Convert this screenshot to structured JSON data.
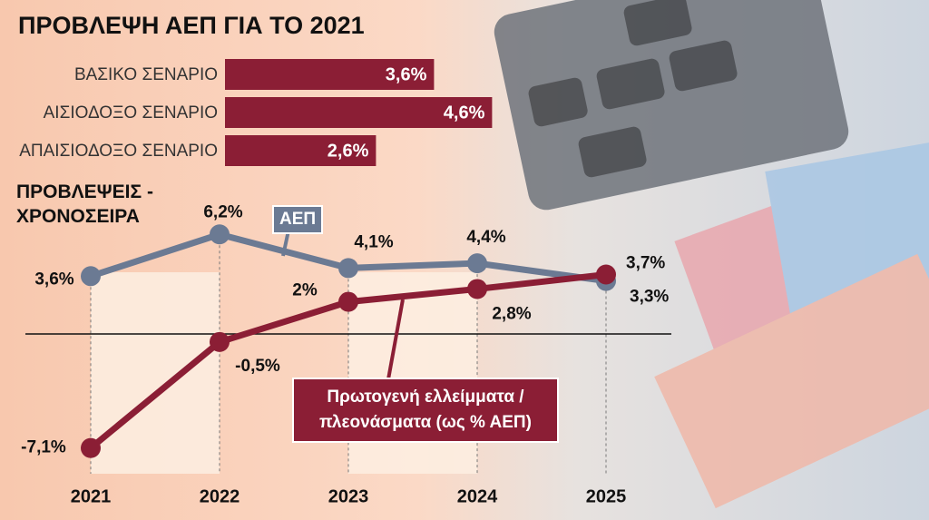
{
  "chart_data": [
    {
      "type": "bar",
      "orientation": "horizontal",
      "title": "ΠΡΟΒΛΕΨΗ ΑΕΠ ΓΙΑ ΤΟ 2021",
      "categories": [
        "ΒΑΣΙΚΟ ΣΕΝΑΡΙΟ",
        "ΑΙΣΙΟΔΟΞΟ ΣΕΝΑΡΙΟ",
        "ΑΠΑΙΣΙΟΔΟΞΟ ΣΕΝΑΡΙΟ"
      ],
      "values": [
        3.6,
        4.6,
        2.6
      ],
      "value_labels": [
        "3,6%",
        "4,6%",
        "2,6%"
      ],
      "color": "#8b1e35"
    },
    {
      "type": "line",
      "title": "ΠΡΟΒΛΕΨΕΙΣ - ΧΡΟΝΟΣΕΙΡΑ",
      "categories": [
        "2021",
        "2022",
        "2023",
        "2024",
        "2025"
      ],
      "series": [
        {
          "name": "ΑΕΠ",
          "color": "#6b7a93",
          "values": [
            3.6,
            6.2,
            4.1,
            4.4,
            3.3
          ],
          "value_labels": [
            "3,6%",
            "6,2%",
            "4,1%",
            "4,4%",
            "3,3%"
          ]
        },
        {
          "name": "Πρωτογενή ελλείμματα / πλεονάσματα (ως % ΑΕΠ)",
          "color": "#8b1e35",
          "values": [
            -7.1,
            -0.5,
            2,
            2.8,
            3.7
          ],
          "value_labels": [
            "-7,1%",
            "-0,5%",
            "2%",
            "2,8%",
            "3,7%"
          ]
        }
      ]
    }
  ]
}
